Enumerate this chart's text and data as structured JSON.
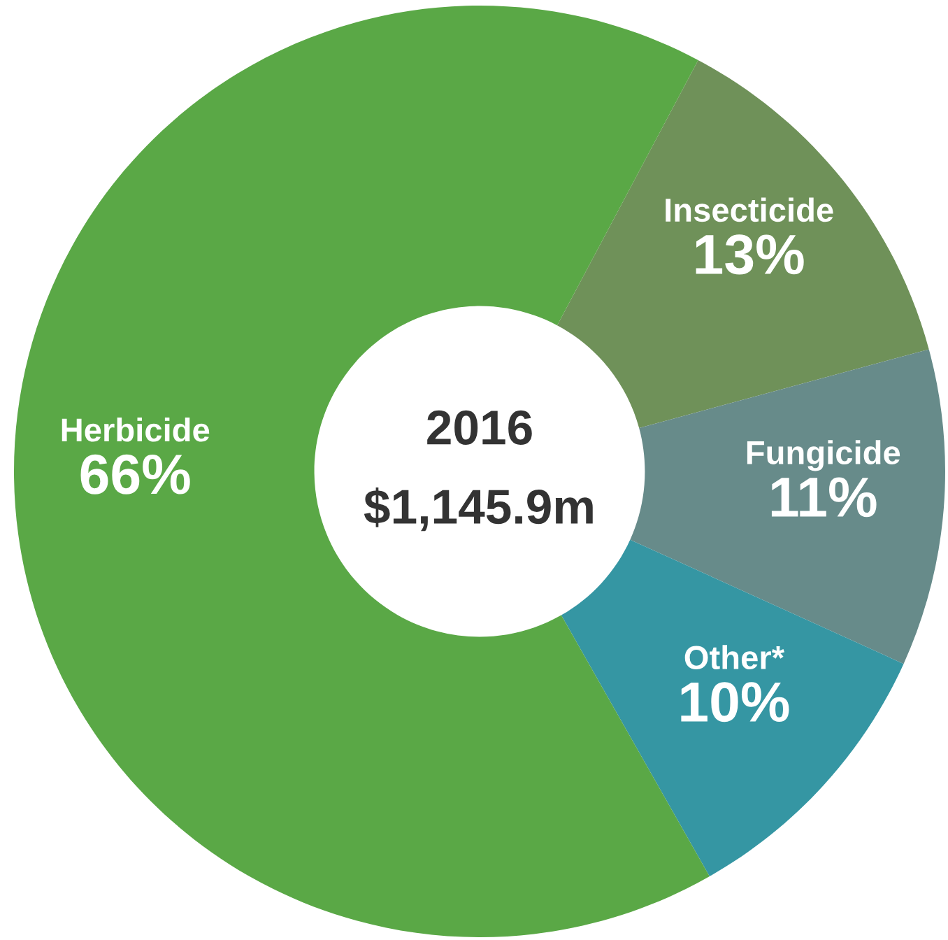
{
  "chart_data": {
    "type": "donut",
    "categories": [
      "Insecticide",
      "Fungicide",
      "Other*",
      "Herbicide"
    ],
    "values": [
      13,
      11,
      10,
      66
    ],
    "value_labels": [
      "13%",
      "11%",
      "10%",
      "66%"
    ],
    "colors": [
      "#6f9159",
      "#678b8a",
      "#3596a3",
      "#5aa846"
    ],
    "annotations": [
      "2016",
      "$1,145.9m"
    ],
    "legend": false
  }
}
